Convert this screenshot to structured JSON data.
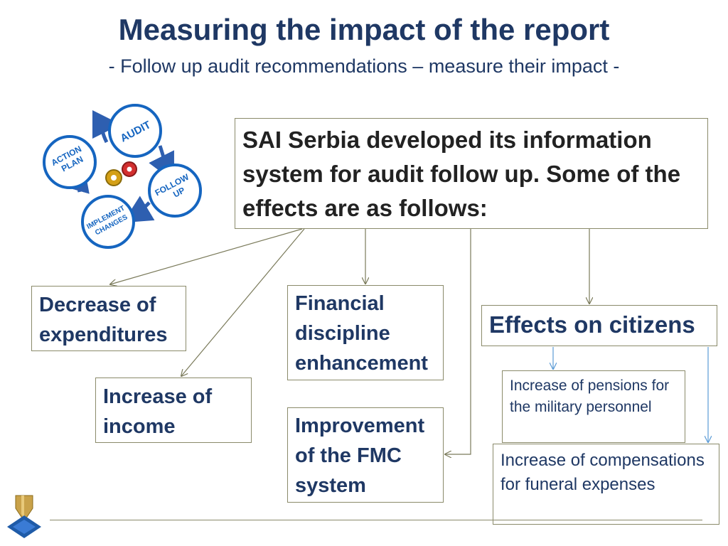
{
  "header": {
    "title": "Measuring the impact of the report",
    "subtitle": "- Follow up audit recommendations – measure their impact -"
  },
  "cycle_graphic": {
    "labels": [
      "AUDIT",
      "ACTION PLAN",
      "FOLLOW UP",
      "IMPLEMENT CHANGES"
    ],
    "circle_color": "#1565c0",
    "arrow_color": "#2e5fb0"
  },
  "main_box": {
    "text": "SAI Serbia developed its information system for audit follow up. Some of the effects are as follows:"
  },
  "effects": {
    "decrease_expenditures": "Decrease of expenditures",
    "increase_income": "Increase of income",
    "financial_discipline": "Financial discipline enhancement",
    "improvement_fmc": "Improvement of the FMC system",
    "effects_on_citizens": "Effects on citizens",
    "increase_pensions": "Increase of pensions for the military personnel",
    "increase_compensations": "Increase of compensations for funeral expenses"
  },
  "colors": {
    "title": "#1f3864",
    "box_border": "#8a8a6a",
    "connector": "#7a7a5a",
    "citizen_connector": "#5b9bd5",
    "logo_gold": "#c9a24a",
    "logo_blue": "#1f5ba8"
  }
}
